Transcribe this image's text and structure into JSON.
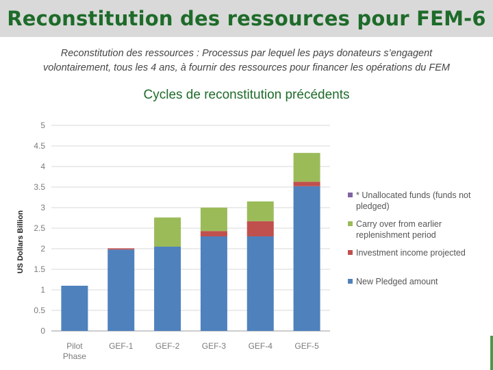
{
  "slide": {
    "title": "Reconstitution des ressources pour FEM-6",
    "subtitle_line1": "Reconstitution des ressources : Processus par lequel les pays donateurs s’engagent",
    "subtitle_line2": "volontairement, tous les 4 ans, à fournir des ressources pour financer les opérations du FEM",
    "chart_heading": "Cycles de reconstitution précédents"
  },
  "colors": {
    "title": "#1e6b2a",
    "title_bar": "#d9d9d9",
    "new_pledged": "#4f81bd",
    "investment_income": "#c0504d",
    "carry_over": "#9bbb59",
    "unallocated": "#8064a2"
  },
  "chart_data": {
    "type": "bar",
    "stacked": true,
    "title": "",
    "xlabel": "",
    "ylabel": "US Dollars Billion",
    "ylim": [
      0,
      5
    ],
    "yticks": [
      "0",
      "0.5",
      "1",
      "1.5",
      "2",
      "2.5",
      "3",
      "3.5",
      "4",
      "4.5",
      "5"
    ],
    "grid": true,
    "legend_position": "right",
    "categories": [
      [
        "Pilot",
        "Phase"
      ],
      [
        "GEF-1"
      ],
      [
        "GEF-2"
      ],
      [
        "GEF-3"
      ],
      [
        "GEF-4"
      ],
      [
        "GEF-5"
      ]
    ],
    "series": [
      {
        "name": "New Pledged amount",
        "legend_lines": [
          "New Pledged amount"
        ],
        "color": "#4f81bd",
        "values": [
          1.1,
          1.98,
          2.05,
          2.3,
          2.3,
          3.52
        ]
      },
      {
        "name": "Investment income projected",
        "legend_lines": [
          "Investment income projected"
        ],
        "color": "#c0504d",
        "values": [
          0,
          0.03,
          0,
          0.13,
          0.37,
          0.11
        ]
      },
      {
        "name": "Carry over from earlier replenishment period",
        "legend_lines": [
          "Carry over from earlier",
          "replenishment period"
        ],
        "color": "#9bbb59",
        "values": [
          0,
          0,
          0.71,
          0.57,
          0.48,
          0.7
        ]
      },
      {
        "name": "* Unallocated funds (funds not pledged)",
        "legend_lines": [
          "* Unallocated funds (funds not",
          "pledged)"
        ],
        "color": "#8064a2",
        "values": [
          0,
          0,
          0,
          0,
          0,
          0
        ]
      }
    ]
  }
}
